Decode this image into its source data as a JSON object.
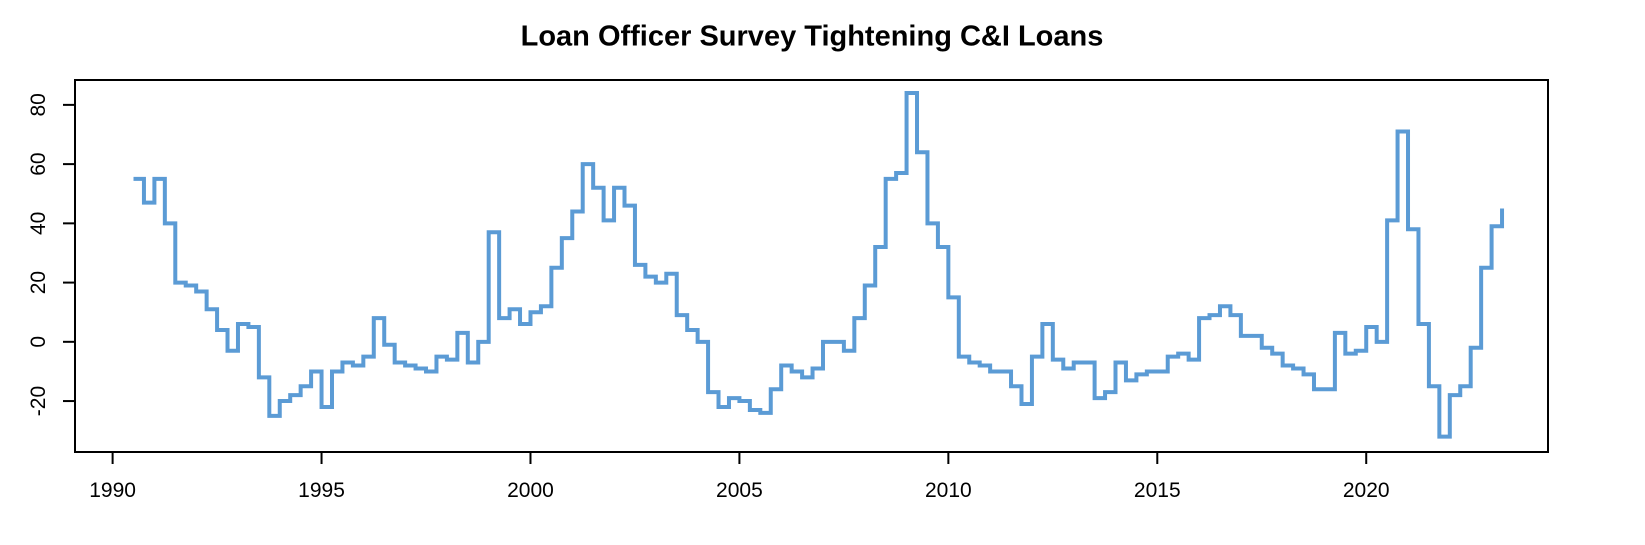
{
  "chart_data": {
    "type": "line",
    "title": "Loan Officer Survey Tightening C&I Loans",
    "x": [
      1990.5,
      1990.75,
      1991,
      1991.25,
      1991.5,
      1991.75,
      1992,
      1992.25,
      1992.5,
      1992.75,
      1993,
      1993.25,
      1993.5,
      1993.75,
      1994,
      1994.25,
      1994.5,
      1994.75,
      1995,
      1995.25,
      1995.5,
      1995.75,
      1996,
      1996.25,
      1996.5,
      1996.75,
      1997,
      1997.25,
      1997.5,
      1997.75,
      1998,
      1998.25,
      1998.5,
      1998.75,
      1999,
      1999.25,
      1999.5,
      1999.75,
      2000,
      2000.25,
      2000.5,
      2000.75,
      2001,
      2001.25,
      2001.5,
      2001.75,
      2002,
      2002.25,
      2002.5,
      2002.75,
      2003,
      2003.25,
      2003.5,
      2003.75,
      2004,
      2004.25,
      2004.5,
      2004.75,
      2005,
      2005.25,
      2005.5,
      2005.75,
      2006,
      2006.25,
      2006.5,
      2006.75,
      2007,
      2007.25,
      2007.5,
      2007.75,
      2008,
      2008.25,
      2008.5,
      2008.75,
      2009,
      2009.25,
      2009.5,
      2009.75,
      2010,
      2010.25,
      2010.5,
      2010.75,
      2011,
      2011.25,
      2011.5,
      2011.75,
      2012,
      2012.25,
      2012.5,
      2012.75,
      2013,
      2013.25,
      2013.5,
      2013.75,
      2014,
      2014.25,
      2014.5,
      2014.75,
      2015,
      2015.25,
      2015.5,
      2015.75,
      2016,
      2016.25,
      2016.5,
      2016.75,
      2017,
      2017.25,
      2017.5,
      2017.75,
      2018,
      2018.25,
      2018.5,
      2018.75,
      2019,
      2019.25,
      2019.5,
      2019.75,
      2020,
      2020.25,
      2020.5,
      2020.75,
      2021,
      2021.25,
      2021.5,
      2021.75,
      2022,
      2022.25,
      2022.5,
      2022.75,
      2023,
      2023.25
    ],
    "series": [
      {
        "color": "#5b9bd5",
        "values": [
          55,
          47,
          55,
          40,
          20,
          19,
          17,
          11,
          4,
          -3,
          6,
          5,
          -12,
          -25,
          -20,
          -18,
          -15,
          -10,
          -22,
          -10,
          -7,
          -8,
          -5,
          8,
          -1,
          -7,
          -8,
          -9,
          -10,
          -5,
          -6,
          3,
          -7,
          0,
          37,
          8,
          11,
          6,
          10,
          12,
          25,
          35,
          44,
          60,
          52,
          41,
          52,
          46,
          26,
          22,
          20,
          23,
          9,
          4,
          0,
          -17,
          -22,
          -19,
          -20,
          -23,
          -24,
          -16,
          -8,
          -10,
          -12,
          -9,
          0,
          0,
          -3,
          8,
          19,
          32,
          55,
          57,
          84,
          64,
          40,
          32,
          15,
          -5,
          -7,
          -8,
          -10,
          -10,
          -15,
          -21,
          -5,
          6,
          -6,
          -9,
          -7,
          -7,
          -19,
          -17,
          -7,
          -13,
          -11,
          -10,
          -10,
          -5,
          -4,
          -6,
          8,
          9,
          12,
          9,
          2,
          2,
          -2,
          -4,
          -8,
          -9,
          -11,
          -16,
          -16,
          3,
          -4,
          -3,
          5,
          0,
          41,
          71,
          38,
          6,
          -15,
          -32,
          -18,
          -15,
          -2,
          25,
          39,
          45
        ]
      }
    ],
    "xlim": [
      1989.1,
      2024.35
    ],
    "xticks": [
      1990,
      1995,
      2000,
      2005,
      2010,
      2015,
      2020
    ],
    "ylim": [
      -37.2,
      88.4
    ],
    "yticks": [
      -20,
      0,
      20,
      40,
      60,
      80
    ]
  }
}
